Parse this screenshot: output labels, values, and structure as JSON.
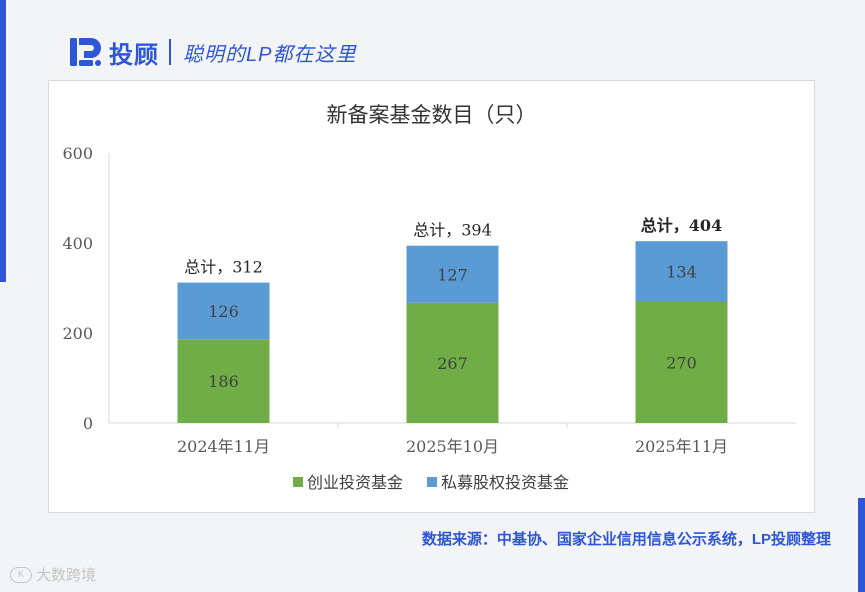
{
  "brand": {
    "name": "投顾",
    "slogan": "聪明的LP都在这里"
  },
  "source": "数据来源：中基协、国家企业信用信息公示系统，LP投顾整理",
  "watermark": "大数跨境",
  "colors": {
    "brand_blue": "#2f56d8",
    "venture": "#70ad47",
    "private_equity": "#5b9bd5"
  },
  "chart_data": {
    "type": "bar",
    "stacked": true,
    "title": "新备案基金数目（只）",
    "categories": [
      "2024年11月",
      "2025年10月",
      "2025年11月"
    ],
    "series": [
      {
        "name": "创业投资基金",
        "values": [
          186,
          267,
          270
        ],
        "color": "#70ad47"
      },
      {
        "name": "私募股权投资基金",
        "values": [
          126,
          127,
          134
        ],
        "color": "#5b9bd5"
      }
    ],
    "totals": [
      "总计，312",
      "总计，394",
      "总计，404"
    ],
    "ylim": [
      0,
      600
    ],
    "yticks": [
      0,
      200,
      400,
      600
    ],
    "grid": false,
    "legend": "bottom"
  }
}
